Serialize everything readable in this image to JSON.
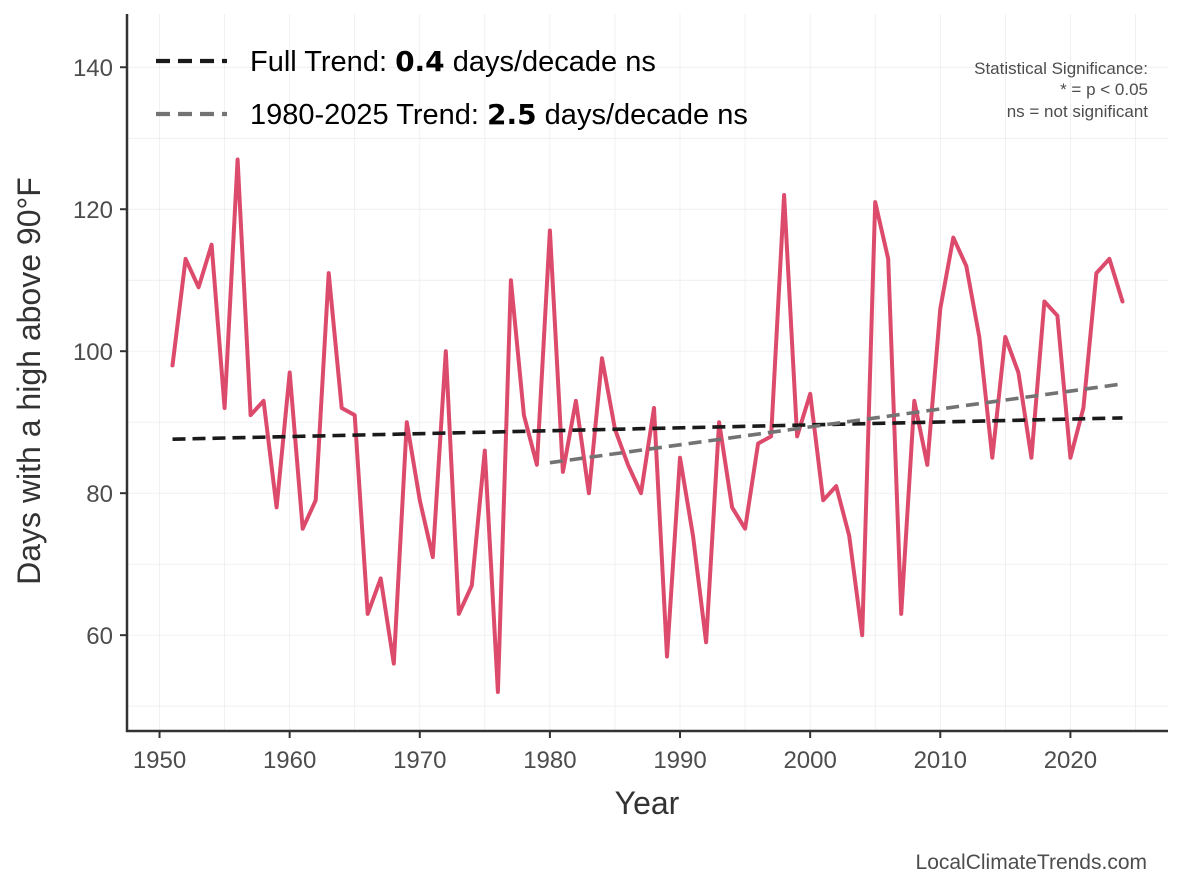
{
  "chart_data": {
    "type": "line",
    "xlabel": "Year",
    "ylabel": "Days with a high above 90°F",
    "xlim": [
      1947.5,
      2027.5
    ],
    "ylim": [
      46.5,
      147.5
    ],
    "x_ticks": [
      1950,
      1960,
      1970,
      1980,
      1990,
      2000,
      2010,
      2020
    ],
    "x_tick_labels": [
      "1950",
      "1960",
      "1970",
      "1980",
      "1990",
      "2000",
      "2010",
      "2020"
    ],
    "y_ticks": [
      60,
      80,
      100,
      120,
      140
    ],
    "y_tick_labels": [
      "60",
      "80",
      "100",
      "120",
      "140"
    ],
    "grid": true,
    "legend_position": "top-left",
    "series": [
      {
        "color": "#dd4b6c",
        "x": [
          1951,
          1952,
          1953,
          1954,
          1955,
          1956,
          1957,
          1958,
          1959,
          1960,
          1961,
          1962,
          1963,
          1964,
          1965,
          1966,
          1967,
          1968,
          1969,
          1970,
          1971,
          1972,
          1973,
          1974,
          1975,
          1976,
          1977,
          1978,
          1979,
          1980,
          1981,
          1982,
          1983,
          1984,
          1985,
          1986,
          1987,
          1988,
          1989,
          1990,
          1991,
          1992,
          1993,
          1994,
          1995,
          1996,
          1997,
          1998,
          1999,
          2000,
          2001,
          2002,
          2003,
          2004,
          2005,
          2006,
          2007,
          2008,
          2009,
          2010,
          2011,
          2012,
          2013,
          2014,
          2015,
          2016,
          2017,
          2018,
          2019,
          2020,
          2021,
          2022,
          2023,
          2024
        ],
        "values": [
          98,
          113,
          109,
          115,
          92,
          127,
          91,
          93,
          78,
          97,
          75,
          79,
          111,
          92,
          91,
          63,
          68,
          56,
          90,
          79,
          71,
          100,
          63,
          67,
          86,
          52,
          110,
          91,
          84,
          117,
          83,
          93,
          80,
          99,
          89,
          84,
          80,
          92,
          57,
          85,
          74,
          59,
          90,
          78,
          75,
          87,
          88,
          122,
          88,
          94,
          79,
          81,
          74,
          60,
          121,
          113,
          63,
          93,
          84,
          106,
          116,
          112,
          102,
          85,
          102,
          97,
          85,
          107,
          105,
          85,
          92,
          111,
          113,
          107
        ]
      },
      {
        "name": "Full Trend",
        "style": "dashed",
        "color": "#1a1a1a",
        "x": [
          1951,
          2024
        ],
        "values": [
          87.6,
          90.6
        ]
      },
      {
        "name": "1980-2025 Trend",
        "style": "dashed",
        "color": "#737373",
        "x": [
          1980,
          2024
        ],
        "values": [
          84.3,
          95.4
        ]
      }
    ],
    "legend": [
      {
        "pre": "Full Trend: ",
        "value": "0.4",
        "post": " days/decade ns",
        "color": "#1a1a1a"
      },
      {
        "pre": "1980-2025 Trend: ",
        "value": "2.5",
        "post": " days/decade ns",
        "color": "#737373"
      }
    ],
    "annotations": {
      "significance": [
        "Statistical Significance:",
        "* = p < 0.05",
        "ns = not significant"
      ],
      "credit": "LocalClimateTrends.com"
    }
  }
}
